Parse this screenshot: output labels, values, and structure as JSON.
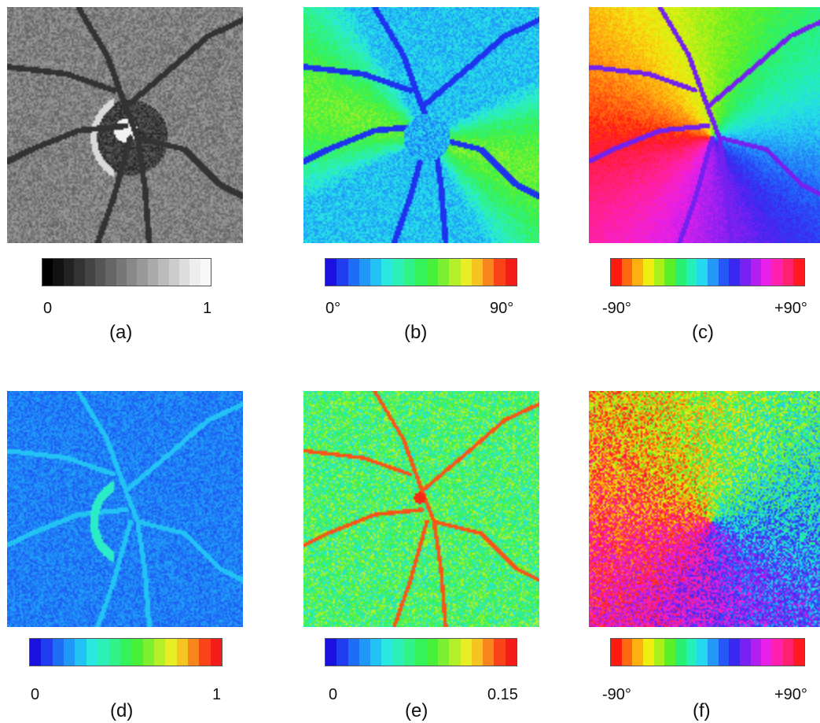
{
  "panels": [
    {
      "id": "a",
      "label": "(a)",
      "min_label": "0",
      "max_label": "1",
      "colormap": [
        "#000000",
        "#111111",
        "#222222",
        "#333333",
        "#444444",
        "#555555",
        "#666666",
        "#777777",
        "#888888",
        "#999999",
        "#aaaaaa",
        "#bbbbbb",
        "#cccccc",
        "#dddddd",
        "#eeeeee",
        "#f8f8f8"
      ],
      "image_type": "grayscale fundus image of optic nerve head"
    },
    {
      "id": "b",
      "label": "(b)",
      "min_label": "0°",
      "max_label": "90°",
      "colormap": [
        "#1a10e0",
        "#1f3cf0",
        "#1e6ef5",
        "#1f98f7",
        "#22c3f4",
        "#28e8e0",
        "#2cf0b8",
        "#30f288",
        "#34f25a",
        "#48f03a",
        "#7cf030",
        "#b2f02a",
        "#e8ee26",
        "#f6c420",
        "#f8861c",
        "#f84418",
        "#f41c18"
      ],
      "image_type": "retardance-like color map, blue to red"
    },
    {
      "id": "c",
      "label": "(c)",
      "min_label": "-90°",
      "max_label": "+90°",
      "colormap": [
        "#ff1a10",
        "#ff6a10",
        "#ffb010",
        "#f0ee10",
        "#a8f018",
        "#5af028",
        "#28f070",
        "#24f0b8",
        "#24d8f0",
        "#2498f8",
        "#2458f8",
        "#3a28f0",
        "#7a20f0",
        "#b020f0",
        "#e820e8",
        "#ff20b0",
        "#ff2070",
        "#ff1a20"
      ],
      "image_type": "cyclic axis-orientation color map"
    },
    {
      "id": "d",
      "label": "(d)",
      "min_label": "0",
      "max_label": "1",
      "colormap": [
        "#1a10e0",
        "#1f3cf0",
        "#1e6ef5",
        "#1f98f7",
        "#22c3f4",
        "#28e8e0",
        "#2cf0b8",
        "#30f288",
        "#34f25a",
        "#48f03a",
        "#7cf030",
        "#b2f02a",
        "#e8ee26",
        "#f6c420",
        "#f8861c",
        "#f84418",
        "#f41c18"
      ],
      "image_type": "mostly blue noise map"
    },
    {
      "id": "e",
      "label": "(e)",
      "min_label": "0",
      "max_label": "0.15",
      "colormap": [
        "#1a10e0",
        "#1f3cf0",
        "#1e6ef5",
        "#1f98f7",
        "#22c3f4",
        "#28e8e0",
        "#2cf0b8",
        "#30f288",
        "#34f25a",
        "#48f03a",
        "#7cf030",
        "#b2f02a",
        "#e8ee26",
        "#f6c420",
        "#f8861c",
        "#f84418",
        "#f41c18"
      ],
      "image_type": "green-yellow noise map"
    },
    {
      "id": "f",
      "label": "(f)",
      "min_label": "-90°",
      "max_label": "+90°",
      "colormap": [
        "#ff1a10",
        "#ff6a10",
        "#ffb010",
        "#f0ee10",
        "#a8f018",
        "#5af028",
        "#28f070",
        "#24f0b8",
        "#24d8f0",
        "#2498f8",
        "#2458f8",
        "#3a28f0",
        "#7a20f0",
        "#b020f0",
        "#e820e8",
        "#ff20b0",
        "#ff2070",
        "#ff1a20"
      ],
      "image_type": "noisy cyclic orientation map"
    }
  ]
}
